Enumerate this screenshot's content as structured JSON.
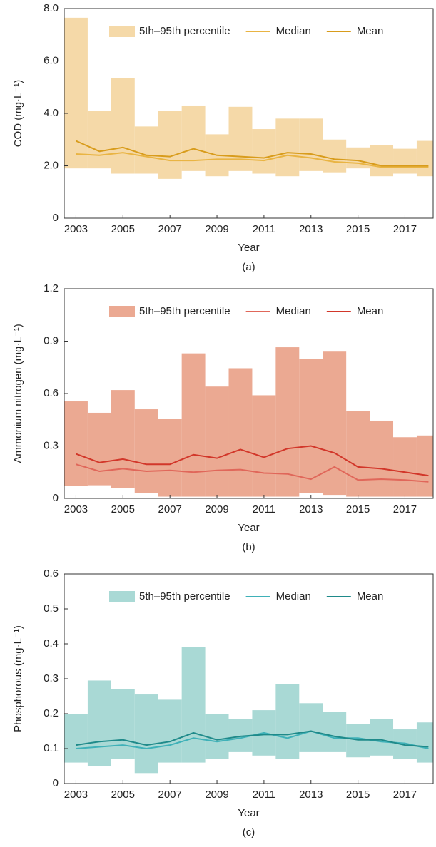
{
  "chart_data": [
    {
      "type": "line",
      "y_label": "COD (mg·L⁻¹)",
      "x_label": "Year",
      "caption": "(a)",
      "x": [
        2003,
        2004,
        2005,
        2006,
        2007,
        2008,
        2009,
        2010,
        2011,
        2012,
        2013,
        2014,
        2015,
        2016,
        2017,
        2018
      ],
      "xlim": [
        2002.5,
        2018.2
      ],
      "xticks": [
        2003,
        2005,
        2007,
        2009,
        2011,
        2013,
        2015,
        2017
      ],
      "ylim": [
        0,
        8
      ],
      "yticks": [
        0,
        {
          "value": 2,
          "label": "2.0"
        },
        {
          "value": 4,
          "label": "4.0"
        },
        {
          "value": 6,
          "label": "6.0"
        },
        {
          "value": 8,
          "label": "8.0"
        }
      ],
      "series": [
        {
          "name": "5th–95th percentile",
          "color": "#f5d9a8",
          "lower": [
            1.9,
            1.9,
            1.7,
            1.7,
            1.5,
            1.8,
            1.6,
            1.8,
            1.7,
            1.6,
            1.8,
            1.75,
            1.9,
            1.6,
            1.7,
            1.6
          ],
          "upper": [
            7.65,
            4.1,
            5.35,
            3.5,
            4.1,
            4.3,
            3.2,
            4.25,
            3.4,
            3.8,
            3.8,
            3.0,
            2.7,
            2.8,
            2.65,
            2.95
          ]
        },
        {
          "name": "Median",
          "color": "#e9b443",
          "values": [
            2.45,
            2.4,
            2.5,
            2.35,
            2.2,
            2.2,
            2.25,
            2.25,
            2.2,
            2.4,
            2.3,
            2.15,
            2.1,
            1.95,
            1.95,
            1.95
          ]
        },
        {
          "name": "Mean",
          "color": "#d89c1c",
          "values": [
            2.95,
            2.55,
            2.7,
            2.4,
            2.35,
            2.65,
            2.4,
            2.35,
            2.3,
            2.5,
            2.45,
            2.25,
            2.2,
            2.0,
            2.0,
            2.0
          ]
        }
      ]
    },
    {
      "type": "line",
      "y_label": "Ammonium nitrogen (mg·L⁻¹)",
      "x_label": "Year",
      "caption": "(b)",
      "x": [
        2003,
        2004,
        2005,
        2006,
        2007,
        2008,
        2009,
        2010,
        2011,
        2012,
        2013,
        2014,
        2015,
        2016,
        2017,
        2018
      ],
      "xlim": [
        2002.5,
        2018.2
      ],
      "xticks": [
        2003,
        2005,
        2007,
        2009,
        2011,
        2013,
        2015,
        2017
      ],
      "ylim": [
        0,
        1.2
      ],
      "yticks": [
        0,
        0.3,
        0.6,
        0.9,
        1.2
      ],
      "series": [
        {
          "name": "5th–95th percentile",
          "color": "#eba992",
          "lower": [
            0.07,
            0.075,
            0.06,
            0.03,
            0.01,
            0.01,
            0.01,
            0.01,
            0.01,
            0.01,
            0.03,
            0.02,
            0.01,
            0.01,
            0.01,
            0.01
          ],
          "upper": [
            0.555,
            0.49,
            0.62,
            0.51,
            0.455,
            0.83,
            0.64,
            0.745,
            0.59,
            0.865,
            0.8,
            0.84,
            0.5,
            0.445,
            0.35,
            0.36
          ]
        },
        {
          "name": "Median",
          "color": "#e0675a",
          "values": [
            0.195,
            0.155,
            0.17,
            0.155,
            0.16,
            0.15,
            0.16,
            0.165,
            0.145,
            0.14,
            0.11,
            0.18,
            0.105,
            0.11,
            0.105,
            0.095
          ]
        },
        {
          "name": "Mean",
          "color": "#d2372a",
          "values": [
            0.255,
            0.205,
            0.225,
            0.195,
            0.195,
            0.25,
            0.23,
            0.28,
            0.235,
            0.285,
            0.3,
            0.26,
            0.18,
            0.17,
            0.15,
            0.13
          ]
        }
      ]
    },
    {
      "type": "line",
      "y_label": "Phosphorous (mg·L⁻¹)",
      "x_label": "Year",
      "caption": "(c)",
      "x": [
        2003,
        2004,
        2005,
        2006,
        2007,
        2008,
        2009,
        2010,
        2011,
        2012,
        2013,
        2014,
        2015,
        2016,
        2017,
        2018
      ],
      "xlim": [
        2002.5,
        2018.2
      ],
      "xticks": [
        2003,
        2005,
        2007,
        2009,
        2011,
        2013,
        2015,
        2017
      ],
      "ylim": [
        0,
        0.6
      ],
      "yticks": [
        0,
        0.1,
        0.2,
        0.3,
        0.4,
        0.5,
        0.6
      ],
      "series": [
        {
          "name": "5th–95th percentile",
          "color": "#a9d9d5",
          "lower": [
            0.06,
            0.05,
            0.07,
            0.03,
            0.06,
            0.06,
            0.07,
            0.09,
            0.08,
            0.07,
            0.09,
            0.09,
            0.075,
            0.08,
            0.07,
            0.06
          ],
          "upper": [
            0.2,
            0.295,
            0.27,
            0.255,
            0.24,
            0.39,
            0.2,
            0.185,
            0.21,
            0.285,
            0.23,
            0.205,
            0.17,
            0.185,
            0.155,
            0.175
          ]
        },
        {
          "name": "Median",
          "color": "#3fb1b8",
          "values": [
            0.1,
            0.105,
            0.11,
            0.1,
            0.11,
            0.13,
            0.12,
            0.13,
            0.145,
            0.13,
            0.15,
            0.13,
            0.13,
            0.12,
            0.115,
            0.1
          ]
        },
        {
          "name": "Mean",
          "color": "#1f8a8a",
          "values": [
            0.11,
            0.12,
            0.125,
            0.11,
            0.12,
            0.145,
            0.125,
            0.135,
            0.14,
            0.14,
            0.15,
            0.135,
            0.125,
            0.125,
            0.11,
            0.105
          ]
        }
      ]
    }
  ]
}
